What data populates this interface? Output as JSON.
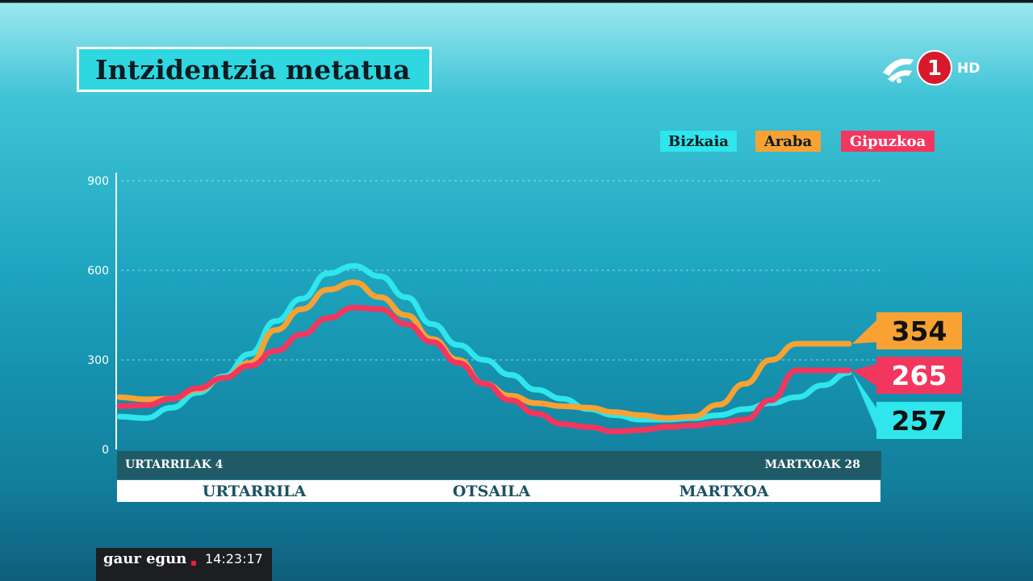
{
  "title": "Intzidentzia metatua",
  "channel": {
    "logo_text": "1",
    "hd_label": "HD"
  },
  "legend": [
    {
      "label": "Bizkaia",
      "color": "#2ee6ec",
      "text_color": "#0d1b22"
    },
    {
      "label": "Araba",
      "color": "#f7a233",
      "text_color": "#0d1b22"
    },
    {
      "label": "Gipuzkoa",
      "color": "#f3365e",
      "text_color": "#ffffff"
    }
  ],
  "timebar": {
    "start_label": "URTARRILAK 4",
    "end_label": "MARTXOAK 28"
  },
  "months": [
    "URTARRILA",
    "OTSAILA",
    "MARTXOA"
  ],
  "ticker": {
    "brand": "gaur egun",
    "time": "14:23:17"
  },
  "chart_data": {
    "type": "line",
    "title": "Intzidentzia metatua",
    "xlabel": "",
    "ylabel": "",
    "ylim": [
      0,
      900
    ],
    "yticks": [
      0,
      300,
      600,
      900
    ],
    "grid": true,
    "legend_position": "top-right",
    "x_range": [
      "URTARRILAK 4",
      "MARTXOAK 28"
    ],
    "x": [
      0,
      3,
      6,
      9,
      12,
      15,
      18,
      21,
      24,
      27,
      30,
      33,
      36,
      39,
      42,
      45,
      48,
      51,
      54,
      57,
      60,
      63,
      66,
      69,
      72,
      75,
      78,
      81,
      84
    ],
    "series": [
      {
        "name": "Bizkaia",
        "color": "#2ee6ec",
        "values": [
          110,
          105,
          140,
          190,
          245,
          320,
          430,
          505,
          590,
          615,
          580,
          510,
          420,
          350,
          300,
          250,
          200,
          170,
          135,
          115,
          100,
          100,
          105,
          115,
          135,
          155,
          175,
          215,
          257
        ],
        "end_label": "257"
      },
      {
        "name": "Araba",
        "color": "#f7a233",
        "values": [
          175,
          168,
          170,
          200,
          240,
          290,
          400,
          470,
          535,
          560,
          510,
          450,
          370,
          300,
          220,
          180,
          155,
          145,
          140,
          125,
          115,
          105,
          110,
          150,
          220,
          300,
          354,
          354,
          354
        ],
        "end_label": "354"
      },
      {
        "name": "Gipuzkoa",
        "color": "#f3365e",
        "values": [
          145,
          148,
          170,
          205,
          240,
          280,
          330,
          385,
          440,
          475,
          470,
          420,
          360,
          290,
          220,
          165,
          120,
          85,
          75,
          60,
          65,
          75,
          80,
          90,
          100,
          165,
          265,
          265,
          265
        ],
        "end_label": "265"
      }
    ]
  }
}
